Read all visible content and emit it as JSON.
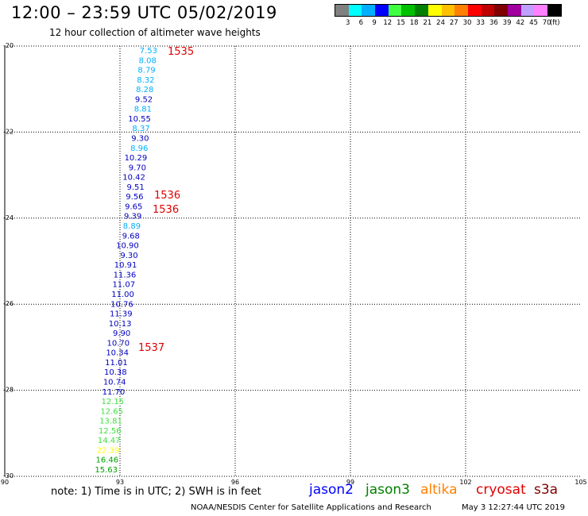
{
  "header": {
    "title": "12:00 – 23:59 UTC 05/02/2019",
    "subtitle": "12 hour collection of altimeter wave heights"
  },
  "legend": {
    "colors": [
      "#808080",
      "#00ffff",
      "#00b0ff",
      "#0000ff",
      "#40ff40",
      "#00c000",
      "#008000",
      "#ffff00",
      "#ffc000",
      "#ff8000",
      "#ff0000",
      "#c00000",
      "#800000",
      "#a000a0",
      "#c0a0ff",
      "#ff80ff",
      "#000000"
    ],
    "labels": [
      "3",
      "6",
      "9",
      "12",
      "15",
      "18",
      "21",
      "24",
      "27",
      "30",
      "33",
      "36",
      "39",
      "42",
      "45",
      "70",
      "(ft)"
    ]
  },
  "map": {
    "lon_range": [
      90,
      105
    ],
    "lat_range": [
      -30,
      -20
    ],
    "lon_ticks": [
      "90",
      "93",
      "96",
      "99",
      "102",
      "105"
    ],
    "lat_ticks": [
      "-20",
      "-22",
      "-24",
      "-26",
      "-28",
      "-30"
    ],
    "observations": [
      {
        "text": "7.53",
        "color": "#00b0ff"
      },
      {
        "text": "8.08",
        "color": "#00b0ff"
      },
      {
        "text": "8.79",
        "color": "#00b0ff"
      },
      {
        "text": "8.32",
        "color": "#00b0ff"
      },
      {
        "text": "8.28",
        "color": "#00b0ff"
      },
      {
        "text": "9.52",
        "color": "#0000c0"
      },
      {
        "text": "8.81",
        "color": "#00b0ff"
      },
      {
        "text": "10.55",
        "color": "#0000c0"
      },
      {
        "text": "8.37",
        "color": "#00b0ff"
      },
      {
        "text": "9.30",
        "color": "#0000c0"
      },
      {
        "text": "8.96",
        "color": "#00b0ff"
      },
      {
        "text": "10.29",
        "color": "#0000c0"
      },
      {
        "text": "9.70",
        "color": "#0000c0"
      },
      {
        "text": "10.42",
        "color": "#0000c0"
      },
      {
        "text": "9.51",
        "color": "#0000c0"
      },
      {
        "text": "9.56",
        "color": "#0000c0"
      },
      {
        "text": "9.65",
        "color": "#0000c0"
      },
      {
        "text": "9.39",
        "color": "#0000c0"
      },
      {
        "text": "8.89",
        "color": "#00b0ff"
      },
      {
        "text": "9.68",
        "color": "#0000c0"
      },
      {
        "text": "10.90",
        "color": "#0000c0"
      },
      {
        "text": "9.30",
        "color": "#0000c0"
      },
      {
        "text": "10.91",
        "color": "#0000c0"
      },
      {
        "text": "11.36",
        "color": "#0000c0"
      },
      {
        "text": "11.07",
        "color": "#0000c0"
      },
      {
        "text": "11.00",
        "color": "#0000c0"
      },
      {
        "text": "10.76",
        "color": "#0000c0"
      },
      {
        "text": "11.39",
        "color": "#0000c0"
      },
      {
        "text": "10.13",
        "color": "#0000c0"
      },
      {
        "text": "9.90",
        "color": "#0000c0"
      },
      {
        "text": "10.70",
        "color": "#0000c0"
      },
      {
        "text": "10.34",
        "color": "#0000c0"
      },
      {
        "text": "11.01",
        "color": "#0000c0"
      },
      {
        "text": "10.38",
        "color": "#0000c0"
      },
      {
        "text": "10.74",
        "color": "#0000c0"
      },
      {
        "text": "11.70",
        "color": "#0000c0"
      },
      {
        "text": "12.15",
        "color": "#40e040"
      },
      {
        "text": "12.65",
        "color": "#40e040"
      },
      {
        "text": "13.81",
        "color": "#40e040"
      },
      {
        "text": "12.56",
        "color": "#40e040"
      },
      {
        "text": "14.47",
        "color": "#40e040"
      },
      {
        "text": "22.39",
        "color": "#ffff00"
      },
      {
        "text": "16.46",
        "color": "#00a000"
      },
      {
        "text": "15.63",
        "color": "#00a000"
      }
    ],
    "time_labels": [
      {
        "text": "1535",
        "color": "#e00000"
      },
      {
        "text": "1536",
        "color": "#e00000"
      },
      {
        "text": "1536",
        "color": "#e00000"
      },
      {
        "text": "1537",
        "color": "#e00000"
      }
    ]
  },
  "footer": {
    "note": "note: 1) Time is in UTC; 2) SWH is in feet",
    "satellites": [
      {
        "name": "jason2",
        "color": "#0000ff"
      },
      {
        "name": "jason3",
        "color": "#008000"
      },
      {
        "name": "altika",
        "color": "#ff8000"
      },
      {
        "name": "cryosat",
        "color": "#e00000"
      },
      {
        "name": "s3a",
        "color": "#800000"
      }
    ],
    "credit": "NOAA/NESDIS Center for Satellite Applications and Research",
    "timestamp": "May  3 12:27:44 UTC 2019"
  }
}
